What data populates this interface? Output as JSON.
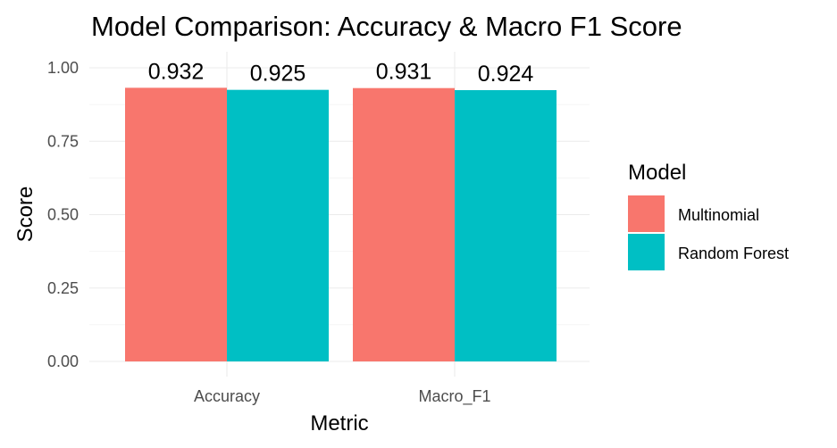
{
  "chart_data": {
    "type": "bar",
    "title": "Model Comparison: Accuracy & Macro F1 Score",
    "xlabel": "Metric",
    "ylabel": "Score",
    "categories": [
      "Accuracy",
      "Macro_F1"
    ],
    "series": [
      {
        "name": "Multinomial",
        "values": [
          0.932,
          0.931
        ],
        "color": "#F8766D"
      },
      {
        "name": "Random Forest",
        "values": [
          0.925,
          0.924
        ],
        "color": "#00BFC4"
      }
    ],
    "data_labels": [
      [
        "0.932",
        "0.931"
      ],
      [
        "0.925",
        "0.924"
      ]
    ],
    "ylim": [
      0,
      1.05
    ],
    "yticks": [
      "0.00",
      "0.25",
      "0.50",
      "0.75",
      "1.00"
    ],
    "ytick_values": [
      0,
      0.25,
      0.5,
      0.75,
      1.0
    ],
    "grid": true,
    "legend_title": "Model",
    "legend_position": "right"
  }
}
